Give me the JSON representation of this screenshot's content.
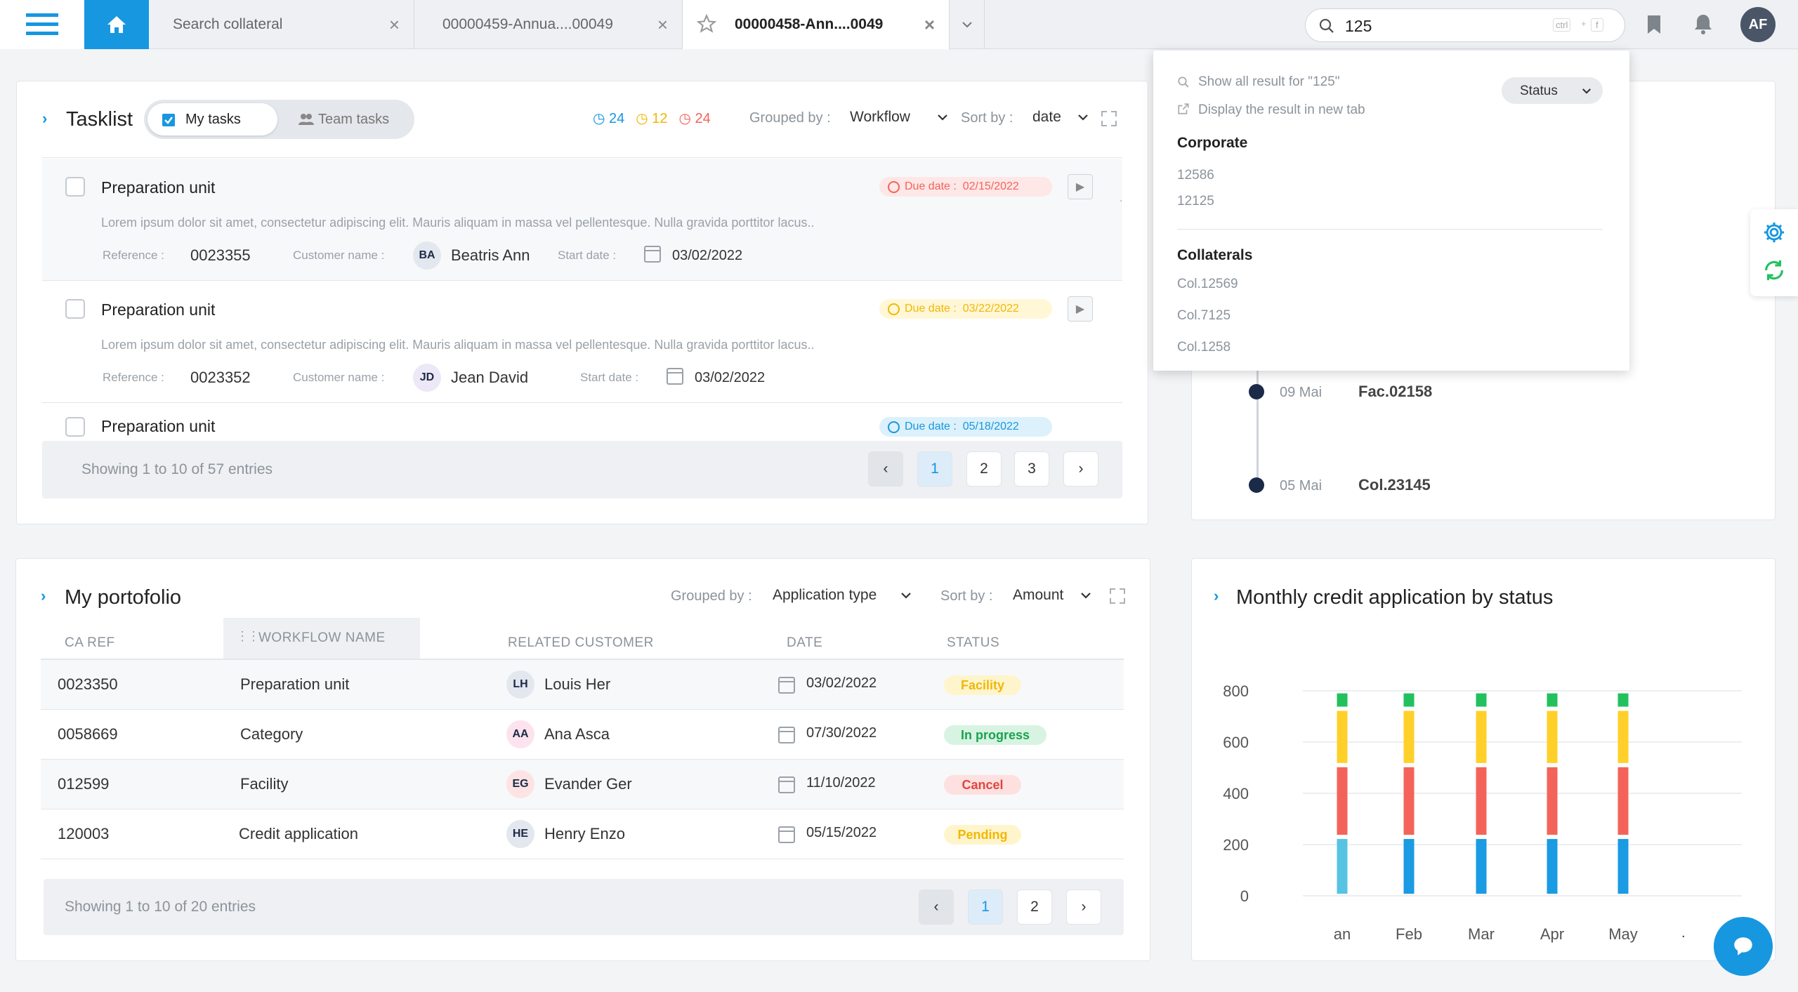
{
  "tabs": [
    {
      "label": "Search collateral"
    },
    {
      "label": "00000459-Annua....00049"
    },
    {
      "label": "00000458-Ann....0049"
    }
  ],
  "search": {
    "value": "125",
    "shortcut_ctrl": "ctrl",
    "shortcut_plus": "+",
    "shortcut_key": "f"
  },
  "user": {
    "initials": "AF"
  },
  "search_results": {
    "show_all": "Show all result for \"125\"",
    "new_tab": "Display the result in new tab",
    "status_filter": "Status",
    "groups": [
      {
        "heading": "Corporate",
        "items": [
          "12586",
          "12125"
        ]
      },
      {
        "heading": "Collaterals",
        "items": [
          "Col.12569",
          "Col.7125",
          "Col.1258"
        ]
      }
    ]
  },
  "tasklist": {
    "title": "Tasklist",
    "toggle_my": "My tasks",
    "toggle_team": "Team tasks",
    "counts": {
      "blue": "24",
      "yellow": "12",
      "red": "24"
    },
    "grouped_label": "Grouped by :",
    "grouped_value": "Workflow",
    "sort_label": "Sort by :",
    "sort_value": "date",
    "tasks": [
      {
        "title": "Preparation unit",
        "due_label": "Due date :",
        "due": "02/15/2022",
        "desc": "Lorem ipsum dolor sit amet, consectetur adipiscing elit. Mauris aliquam in massa vel pellentesque. Nulla gravida porttitor lacus..",
        "ref_label": "Reference :",
        "ref": "0023355",
        "cust_label": "Customer name :",
        "cust_initials": "BA",
        "cust": "Beatris Ann",
        "start_label": "Start date :",
        "start": "03/02/2022"
      },
      {
        "title": "Preparation unit",
        "due_label": "Due date :",
        "due": "03/22/2022",
        "desc": "Lorem ipsum dolor sit amet, consectetur adipiscing elit. Mauris aliquam in massa vel pellentesque. Nulla gravida porttitor lacus..",
        "ref_label": "Reference :",
        "ref": "0023352",
        "cust_label": "Customer name :",
        "cust_initials": "JD",
        "cust": "Jean David",
        "start_label": "Start date :",
        "start": "03/02/2022"
      },
      {
        "title": "Preparation unit",
        "due_label": "Due date :",
        "due": "05/18/2022"
      }
    ],
    "showing": "Showing 1 to 10 of 57 entries",
    "pages": [
      "1",
      "2",
      "3"
    ]
  },
  "timeline": [
    {
      "date": "09 Mai",
      "ref": "Fac.02158"
    },
    {
      "date": "05 Mai",
      "ref": "Col.23145"
    }
  ],
  "portfolio": {
    "title": "My portofolio",
    "grouped_label": "Grouped by :",
    "grouped_value": "Application type",
    "sort_label": "Sort by :",
    "sort_value": "Amount",
    "columns": [
      "CA REF",
      "WORKFLOW NAME",
      "RELATED CUSTOMER",
      "DATE",
      "STATUS"
    ],
    "rows": [
      {
        "ref": "0023350",
        "workflow": "Preparation unit",
        "initials": "LH",
        "customer": "Louis Her",
        "date": "03/02/2022",
        "status": "Facility"
      },
      {
        "ref": "0058669",
        "workflow": "Category",
        "initials": "AA",
        "customer": "Ana Asca",
        "date": "07/30/2022",
        "status": "In progress"
      },
      {
        "ref": "012599",
        "workflow": "Facility",
        "initials": "EG",
        "customer": "Evander Ger",
        "date": "11/10/2022",
        "status": "Cancel"
      },
      {
        "ref": "120003",
        "workflow": "Credit application",
        "initials": "HE",
        "customer": "Henry Enzo",
        "date": "05/15/2022",
        "status": "Pending"
      }
    ],
    "showing": "Showing 1 to 10 of 20 entries",
    "pages": [
      "1",
      "2"
    ]
  },
  "chart_data": {
    "type": "bar",
    "title": "Monthly credit application by status",
    "categories": [
      "an",
      "Feb",
      "Mar",
      "Apr",
      "May"
    ],
    "y_ticks": [
      "800",
      "600",
      "400",
      "200",
      "0"
    ],
    "ylim": [
      0,
      800
    ],
    "stacked": true,
    "series": [
      {
        "values": [
          230,
          230,
          230,
          230,
          230
        ],
        "color": "#1a9be3"
      },
      {
        "values": [
          280,
          280,
          280,
          280,
          280
        ],
        "color": "#f4635a"
      },
      {
        "values": [
          220,
          220,
          220,
          220,
          220
        ],
        "color": "#ffd02a"
      },
      {
        "values": [
          60,
          60,
          60,
          60,
          60
        ],
        "color": "#22c15e"
      }
    ]
  },
  "colors": {
    "accent": "#1797e0",
    "navy": "#1b2a47",
    "red": "#f4635a",
    "yellow": "#ffd02a",
    "green": "#22c15e"
  }
}
